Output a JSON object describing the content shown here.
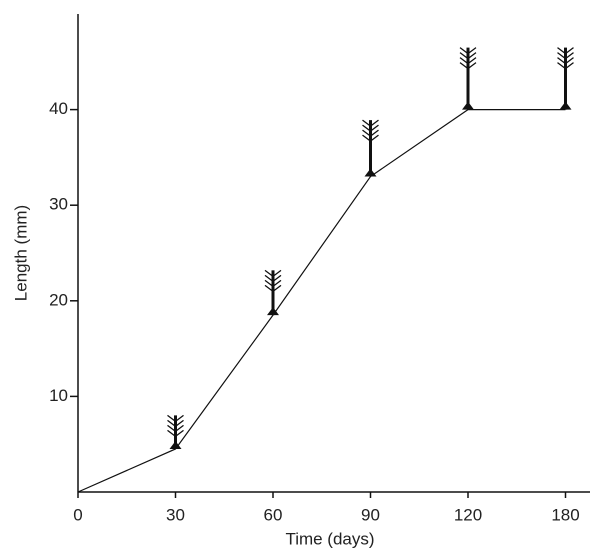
{
  "chart_data": {
    "type": "line",
    "categories": [
      "0",
      "30",
      "60",
      "90",
      "120",
      "180"
    ],
    "values": [
      0,
      4.5,
      18.5,
      33,
      40,
      40
    ],
    "color": "#111111",
    "xlabel": "Time (days)",
    "ylabel": "Length (mm)",
    "ylim": [
      0,
      50
    ],
    "yticks": [
      10,
      20,
      30,
      40
    ]
  }
}
